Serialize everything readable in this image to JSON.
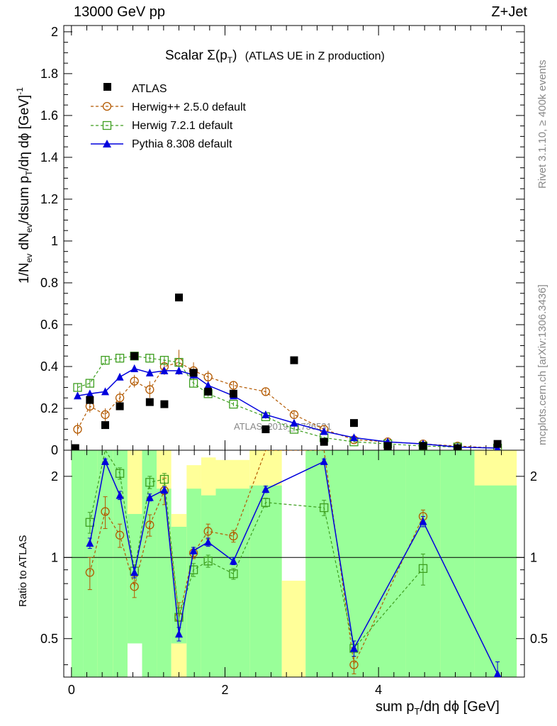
{
  "header": {
    "left": "13000 GeV pp",
    "right": "Z+Jet"
  },
  "side_text": {
    "rivet": "Rivet 3.1.10, ≥ 400k events",
    "mcplots": "mcplots.cern.ch [arXiv:1306.3436]"
  },
  "colors": {
    "atlas": "#000000",
    "herwigpp": "#b35900",
    "herwig7": "#3d9e1f",
    "pythia": "#0000dd",
    "band_green": "#99ff99",
    "band_yellow": "#ffff99"
  },
  "chart_data": {
    "type": "scatter",
    "title": "Scalar Σ(p_T) (ATLAS UE in Z production)",
    "title_main": "Scalar Σ(p",
    "title_sub": "T",
    "title_close": ")",
    "title_rest": "(ATLAS UE in Z production)",
    "watermark": "ATLAS_2019_I1736531",
    "xlabel": "sum p_T/dη dϕ [GeV]",
    "ylabel": "1/N_ev dN_ev/dsum p_T/dη dϕ [GeV]^-1",
    "ratio_ylabel": "Ratio to ATLAS",
    "xlim": [
      -0.1,
      5.9
    ],
    "ylim": [
      0,
      2.03
    ],
    "ratio_ylim": [
      0.36,
      2.5
    ],
    "ratio_scale": "log",
    "x_ticks": [
      "0",
      "2",
      "4"
    ],
    "y_ticks": [
      "0",
      "0.2",
      "0.4",
      "0.6",
      "0.8",
      "1",
      "1.2",
      "1.4",
      "1.6",
      "1.8",
      "2"
    ],
    "ratio_ticks": [
      "0.5",
      "1",
      "2"
    ],
    "legend": {
      "atlas": "ATLAS",
      "herwigpp": "Herwig++ 2.5.0 default",
      "herwig7": "Herwig 7.2.1 default",
      "pythia": "Pythia 8.308 default"
    },
    "atlas": {
      "name": "ATLAS",
      "x": [
        0.05,
        0.24,
        0.44,
        0.63,
        0.82,
        1.02,
        1.21,
        1.4,
        1.59,
        1.78,
        2.11,
        2.53,
        2.9,
        3.29,
        3.68,
        4.12,
        4.58,
        5.03,
        5.55
      ],
      "y": [
        0.01,
        0.24,
        0.12,
        0.21,
        0.45,
        0.23,
        0.22,
        0.73,
        0.37,
        0.28,
        0.27,
        0.1,
        0.43,
        0.04,
        0.13,
        0.02,
        0.02,
        0.01,
        0.03
      ]
    },
    "series": [
      {
        "name": "Herwig++ 2.5.0 default",
        "x": [
          0.08,
          0.24,
          0.44,
          0.63,
          0.82,
          1.02,
          1.21,
          1.4,
          1.59,
          1.78,
          2.11,
          2.53,
          2.9,
          3.29,
          3.68,
          4.12,
          4.58,
          5.03,
          5.55
        ],
        "y": [
          0.1,
          0.21,
          0.17,
          0.25,
          0.33,
          0.29,
          0.4,
          0.42,
          0.38,
          0.35,
          0.31,
          0.28,
          0.17,
          0.1,
          0.05,
          0.04,
          0.03,
          0.02,
          0.01
        ],
        "yerr": [
          0.03,
          0.03,
          0.03,
          0.03,
          0.03,
          0.04,
          0.04,
          0.06,
          0.04,
          0.03,
          0.02,
          0.02,
          0.02,
          0.01,
          0.01,
          0.005,
          0.004,
          0.003,
          0.002
        ],
        "ratio_x": [
          0.24,
          0.44,
          0.63,
          0.82,
          1.02,
          1.21,
          1.4,
          1.59,
          1.78,
          2.11,
          2.53,
          3.29,
          3.68,
          4.58
        ],
        "ratio": [
          0.88,
          1.48,
          1.21,
          0.78,
          1.32,
          1.77,
          0.6,
          1.04,
          1.25,
          1.2,
          2.5,
          2.5,
          0.4,
          1.42
        ],
        "ratio_err": [
          0.12,
          0.2,
          0.12,
          0.07,
          0.12,
          0.2,
          0.08,
          0.05,
          0.08,
          0.06,
          0.0,
          0.0,
          0.03,
          0.08
        ]
      },
      {
        "name": "Herwig 7.2.1 default",
        "x": [
          0.08,
          0.24,
          0.44,
          0.63,
          0.82,
          1.02,
          1.21,
          1.4,
          1.59,
          1.78,
          2.11,
          2.53,
          2.9,
          3.29,
          3.68,
          4.12,
          4.58,
          5.03,
          5.55
        ],
        "y": [
          0.3,
          0.32,
          0.43,
          0.44,
          0.45,
          0.44,
          0.43,
          0.42,
          0.32,
          0.27,
          0.22,
          0.16,
          0.1,
          0.06,
          0.04,
          0.03,
          0.02,
          0.015,
          0.01
        ],
        "yerr": [
          0.02,
          0.02,
          0.02,
          0.02,
          0.02,
          0.02,
          0.02,
          0.02,
          0.02,
          0.015,
          0.01,
          0.01,
          0.01,
          0.005,
          0.004,
          0.003,
          0.002,
          0.002,
          0.001
        ],
        "ratio_x": [
          0.24,
          0.44,
          0.63,
          0.82,
          1.02,
          1.21,
          1.4,
          1.59,
          1.78,
          2.11,
          2.53,
          3.29,
          3.68,
          4.58
        ],
        "ratio": [
          1.35,
          2.5,
          2.05,
          0.89,
          1.9,
          1.95,
          0.6,
          0.9,
          0.97,
          0.87,
          1.6,
          1.53,
          0.46,
          0.91
        ],
        "ratio_err": [
          0.12,
          0.0,
          0.1,
          0.05,
          0.1,
          0.1,
          0.05,
          0.05,
          0.05,
          0.04,
          0.06,
          0.1,
          0.03,
          0.12
        ]
      },
      {
        "name": "Pythia 8.308 default",
        "x": [
          0.08,
          0.24,
          0.44,
          0.63,
          0.82,
          1.02,
          1.21,
          1.4,
          1.59,
          1.78,
          2.11,
          2.53,
          2.9,
          3.29,
          3.68,
          4.12,
          4.58,
          5.03,
          5.55
        ],
        "y": [
          0.26,
          0.27,
          0.28,
          0.35,
          0.39,
          0.37,
          0.38,
          0.38,
          0.36,
          0.31,
          0.26,
          0.17,
          0.13,
          0.09,
          0.06,
          0.04,
          0.03,
          0.015,
          0.01
        ],
        "yerr": [
          0.015,
          0.015,
          0.015,
          0.015,
          0.015,
          0.015,
          0.015,
          0.015,
          0.015,
          0.015,
          0.01,
          0.01,
          0.008,
          0.006,
          0.004,
          0.003,
          0.002,
          0.001,
          0.001
        ],
        "ratio_x": [
          0.24,
          0.44,
          0.63,
          0.82,
          1.02,
          1.21,
          1.4,
          1.59,
          1.78,
          2.11,
          2.53,
          3.29,
          3.68,
          4.58,
          5.55
        ],
        "ratio": [
          1.13,
          2.27,
          1.7,
          0.88,
          1.67,
          1.78,
          0.52,
          1.06,
          1.14,
          0.97,
          1.79,
          2.27,
          0.46,
          1.36,
          0.37
        ],
        "ratio_err": [
          0.05,
          0.05,
          0.06,
          0.04,
          0.05,
          0.05,
          0.03,
          0.03,
          0.04,
          0.03,
          0.05,
          0.05,
          0.03,
          0.06,
          0.04
        ]
      }
    ],
    "bands": {
      "note": "ATLAS uncertainty bands in ratio panel: inner (green) and outer (yellow) ranges per bin, x edges in GeV",
      "x_lo": [
        0.0,
        0.15,
        0.34,
        0.54,
        0.73,
        0.92,
        1.11,
        1.3,
        1.5,
        1.69,
        1.88,
        2.32,
        2.74,
        3.05,
        3.5,
        3.86,
        4.35,
        4.81,
        5.25
      ],
      "x_hi": [
        0.15,
        0.34,
        0.54,
        0.73,
        0.92,
        1.11,
        1.3,
        1.5,
        1.69,
        1.88,
        2.32,
        2.74,
        3.05,
        3.5,
        3.86,
        4.35,
        4.81,
        5.25,
        5.8
      ],
      "green_lo": [
        0.36,
        0.36,
        0.36,
        0.36,
        0.48,
        0.36,
        0.36,
        0.48,
        0.36,
        0.36,
        0.36,
        0.36,
        0.36,
        0.36,
        0.36,
        0.36,
        0.36,
        0.36,
        0.36
      ],
      "green_hi": [
        2.5,
        2.5,
        2.5,
        2.5,
        1.45,
        2.5,
        1.8,
        1.3,
        1.8,
        1.7,
        1.8,
        1.85,
        0.36,
        2.5,
        2.5,
        2.5,
        2.5,
        2.5,
        1.85
      ],
      "yellow_lo": [
        0.36,
        0.62,
        0.36,
        0.36,
        0.72,
        0.36,
        0.36,
        0.36,
        0.36,
        0.36,
        0.52,
        0.36,
        0.36,
        0.36,
        0.52,
        0.36,
        0.36,
        0.36,
        0.36
      ],
      "yellow_hi": [
        2.5,
        2.5,
        2.5,
        2.5,
        2.5,
        2.5,
        2.5,
        1.45,
        2.2,
        2.35,
        2.3,
        2.5,
        0.82,
        2.5,
        2.5,
        2.5,
        2.5,
        2.5,
        2.5
      ]
    }
  }
}
